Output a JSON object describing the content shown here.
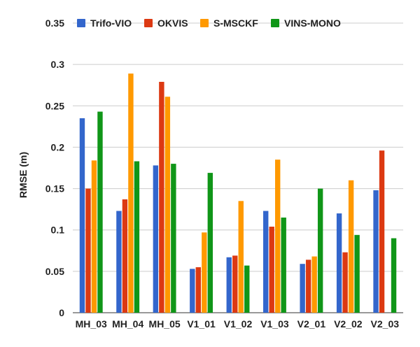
{
  "chart_data": {
    "type": "bar",
    "title": "",
    "xlabel": "",
    "ylabel": "RMSE (m)",
    "ylim": [
      0,
      0.35
    ],
    "yticks": [
      "0",
      "0.05",
      "0.1",
      "0.15",
      "0.2",
      "0.25",
      "0.3",
      "0.35"
    ],
    "ytick_values": [
      0,
      0.05,
      0.1,
      0.15,
      0.2,
      0.25,
      0.3,
      0.35
    ],
    "grid": true,
    "legend_position": "top",
    "categories": [
      "MH_03",
      "MH_04",
      "MH_05",
      "V1_01",
      "V1_02",
      "V1_03",
      "V2_01",
      "V2_02",
      "V2_03"
    ],
    "series": [
      {
        "name": "Trifo-VIO",
        "color": "#3366cc",
        "values": [
          0.235,
          0.123,
          0.178,
          0.053,
          0.067,
          0.123,
          0.059,
          0.12,
          0.148
        ]
      },
      {
        "name": "OKVIS",
        "color": "#dc3912",
        "values": [
          0.15,
          0.137,
          0.279,
          0.055,
          0.069,
          0.104,
          0.064,
          0.073,
          0.196
        ]
      },
      {
        "name": "S-MSCKF",
        "color": "#ff9900",
        "values": [
          0.184,
          0.289,
          0.261,
          0.097,
          0.135,
          0.185,
          0.068,
          0.16,
          null
        ]
      },
      {
        "name": "VINS-MONO",
        "color": "#109618",
        "values": [
          0.243,
          0.183,
          0.18,
          0.169,
          0.057,
          0.115,
          0.15,
          0.094,
          0.09
        ]
      }
    ]
  }
}
